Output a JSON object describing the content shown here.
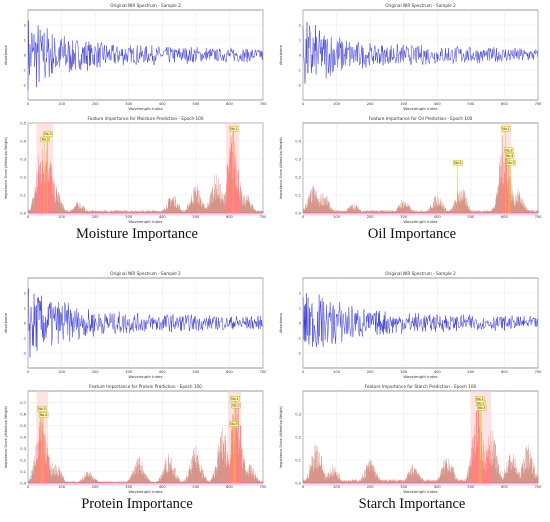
{
  "panels": [
    {
      "caption": "Moisture Importance",
      "spectrum": {
        "title": "Original NIR Spectrum - Sample 2",
        "xlabel": "Wavelength Index",
        "ylabel": "Absorbance"
      },
      "importance": {
        "title": "Feature Importance for Moisture Prediction - Epoch 100",
        "xlabel": "Wavelength Index",
        "ylabel": "Importance Score (Attention Weight)"
      }
    },
    {
      "caption": "Oil Importance",
      "spectrum": {
        "title": "Original NIR Spectrum - Sample 2",
        "xlabel": "Wavelength Index",
        "ylabel": "Absorbance"
      },
      "importance": {
        "title": "Feature Importance for Oil Prediction - Epoch 100",
        "xlabel": "Wavelength Index",
        "ylabel": "Importance Score (Attention Weight)"
      }
    },
    {
      "caption": "Protein Importance",
      "spectrum": {
        "title": "Original NIR Spectrum - Sample 2",
        "xlabel": "Wavelength Index",
        "ylabel": "Absorbance"
      },
      "importance": {
        "title": "Feature Importance for Protein Prediction - Epoch 100",
        "xlabel": "Wavelength Index",
        "ylabel": "Importance Score (Attention Weight)"
      }
    },
    {
      "caption": "Starch Importance",
      "spectrum": {
        "title": "Original NIR Spectrum - Sample 2",
        "xlabel": "Wavelength Index",
        "ylabel": "Absorbance"
      },
      "importance": {
        "title": "Feature Importance for Starch Prediction - Epoch 100",
        "xlabel": "Wavelength Index",
        "ylabel": "Importance Score (Attention Weight)"
      }
    }
  ],
  "chart_data": [
    {
      "type": "line",
      "name": "moisture-spectrum",
      "xlim": [
        0,
        700
      ],
      "ylim": [
        -3,
        3
      ],
      "xticks": [
        "0",
        "100",
        "200",
        "300",
        "400",
        "500",
        "600",
        "700"
      ],
      "yticks": [
        "2",
        "1",
        "0",
        "-1",
        "-2"
      ],
      "color": "#3b3bd6",
      "envelope": [
        [
          0,
          2.6
        ],
        [
          50,
          2.0
        ],
        [
          100,
          1.6
        ],
        [
          150,
          1.1
        ],
        [
          200,
          0.9
        ],
        [
          300,
          0.7
        ],
        [
          500,
          0.55
        ],
        [
          700,
          0.45
        ]
      ]
    },
    {
      "type": "bar",
      "name": "moisture-importance",
      "xlim": [
        0,
        700
      ],
      "ylim": [
        0,
        0.5
      ],
      "xticks": [
        "0",
        "100",
        "200",
        "300",
        "400",
        "500",
        "600",
        "700"
      ],
      "yticks": [
        "0.5",
        "0.4",
        "0.3",
        "0.2",
        "0.1",
        "0.0"
      ],
      "bar_color": "#c66a5a",
      "highlight_color": "#ff5a5a",
      "peaks": [
        [
          40,
          0.36
        ],
        [
          55,
          0.42
        ],
        [
          80,
          0.15
        ],
        [
          150,
          0.06
        ],
        [
          430,
          0.1
        ],
        [
          500,
          0.15
        ],
        [
          560,
          0.2
        ],
        [
          610,
          0.45
        ],
        [
          650,
          0.1
        ]
      ],
      "highlights": [
        [
          25,
          75
        ],
        [
          590,
          630
        ]
      ],
      "annotations": [
        {
          "x": 50,
          "y": 0.4,
          "label": "No.2"
        },
        {
          "x": 58,
          "y": 0.43,
          "label": "No.3"
        },
        {
          "x": 612,
          "y": 0.46,
          "label": "No.1"
        }
      ]
    },
    {
      "type": "line",
      "name": "oil-spectrum",
      "xlim": [
        0,
        700
      ],
      "ylim": [
        -3,
        3
      ],
      "xticks": [
        "0",
        "100",
        "200",
        "300",
        "400",
        "500",
        "600",
        "700"
      ],
      "yticks": [
        "2",
        "1",
        "0",
        "-1",
        "-2"
      ],
      "color": "#3b3bd6",
      "envelope": [
        [
          0,
          2.3
        ],
        [
          50,
          1.9
        ],
        [
          100,
          1.4
        ],
        [
          150,
          1.0
        ],
        [
          200,
          0.8
        ],
        [
          300,
          0.7
        ],
        [
          500,
          0.55
        ],
        [
          700,
          0.45
        ]
      ]
    },
    {
      "type": "bar",
      "name": "oil-importance",
      "xlim": [
        0,
        700
      ],
      "ylim": [
        0,
        0.5
      ],
      "xticks": [
        "0",
        "100",
        "200",
        "300",
        "400",
        "500",
        "600",
        "700"
      ],
      "yticks": [
        "0.4",
        "0.3",
        "0.2",
        "0.1",
        "0.0"
      ],
      "bar_color": "#c66a5a",
      "highlight_color": "#ff5a5a",
      "peaks": [
        [
          30,
          0.14
        ],
        [
          60,
          0.11
        ],
        [
          150,
          0.05
        ],
        [
          300,
          0.07
        ],
        [
          400,
          0.1
        ],
        [
          470,
          0.14
        ],
        [
          600,
          0.42
        ],
        [
          640,
          0.12
        ]
      ],
      "highlights": [
        [
          590,
          620
        ]
      ],
      "annotations": [
        {
          "x": 460,
          "y": 0.27,
          "label": "No.5"
        },
        {
          "x": 603,
          "y": 0.46,
          "label": "No.1"
        },
        {
          "x": 612,
          "y": 0.34,
          "label": "No.2"
        },
        {
          "x": 614,
          "y": 0.31,
          "label": "No.4"
        },
        {
          "x": 618,
          "y": 0.27,
          "label": "No.3"
        }
      ]
    },
    {
      "type": "line",
      "name": "protein-spectrum",
      "xlim": [
        0,
        700
      ],
      "ylim": [
        -3,
        3
      ],
      "xticks": [
        "0",
        "100",
        "200",
        "300",
        "400",
        "500",
        "600",
        "700"
      ],
      "yticks": [
        "2",
        "1",
        "0",
        "-1",
        "-2"
      ],
      "color": "#3b3bd6",
      "envelope": [
        [
          0,
          2.5
        ],
        [
          50,
          2.0
        ],
        [
          100,
          1.5
        ],
        [
          150,
          1.1
        ],
        [
          200,
          0.9
        ],
        [
          300,
          0.7
        ],
        [
          500,
          0.55
        ],
        [
          700,
          0.45
        ]
      ]
    },
    {
      "type": "bar",
      "name": "protein-importance",
      "xlim": [
        0,
        700
      ],
      "ylim": [
        0,
        0.8
      ],
      "xticks": [
        "0",
        "100",
        "200",
        "300",
        "400",
        "500",
        "600",
        "700"
      ],
      "yticks": [
        "0.7",
        "0.6",
        "0.5",
        "0.4",
        "0.3",
        "0.2",
        "0.1",
        "0.0"
      ],
      "bar_color": "#c66a5a",
      "highlight_color": "#ff5a5a",
      "peaks": [
        [
          40,
          0.62
        ],
        [
          80,
          0.18
        ],
        [
          180,
          0.1
        ],
        [
          330,
          0.22
        ],
        [
          420,
          0.25
        ],
        [
          500,
          0.3
        ],
        [
          580,
          0.45
        ],
        [
          620,
          0.7
        ],
        [
          660,
          0.15
        ]
      ],
      "highlights": [
        [
          25,
          60
        ],
        [
          595,
          635
        ]
      ],
      "annotations": [
        {
          "x": 40,
          "y": 0.63,
          "label": "No.3"
        },
        {
          "x": 45,
          "y": 0.58,
          "label": "No.4"
        },
        {
          "x": 615,
          "y": 0.72,
          "label": "No.1"
        },
        {
          "x": 618,
          "y": 0.66,
          "label": "No.2"
        },
        {
          "x": 612,
          "y": 0.5,
          "label": "No.5"
        }
      ]
    },
    {
      "type": "line",
      "name": "starch-spectrum",
      "xlim": [
        0,
        700
      ],
      "ylim": [
        -3,
        3
      ],
      "xticks": [
        "0",
        "100",
        "200",
        "300",
        "400",
        "500",
        "600",
        "700"
      ],
      "yticks": [
        "2",
        "1",
        "0",
        "-1",
        "-2"
      ],
      "color": "#3b3bd6",
      "envelope": [
        [
          0,
          2.4
        ],
        [
          50,
          2.0
        ],
        [
          100,
          1.5
        ],
        [
          150,
          1.1
        ],
        [
          200,
          0.9
        ],
        [
          300,
          0.7
        ],
        [
          500,
          0.55
        ],
        [
          700,
          0.45
        ]
      ]
    },
    {
      "type": "bar",
      "name": "starch-importance",
      "xlim": [
        0,
        700
      ],
      "ylim": [
        0,
        0.4
      ],
      "xticks": [
        "0",
        "100",
        "200",
        "300",
        "400",
        "500",
        "600",
        "700"
      ],
      "yticks": [
        "0.3",
        "0.2",
        "0.1",
        "0.0"
      ],
      "bar_color": "#c66a5a",
      "highlight_color": "#ff5a5a",
      "peaks": [
        [
          40,
          0.17
        ],
        [
          90,
          0.07
        ],
        [
          200,
          0.1
        ],
        [
          330,
          0.08
        ],
        [
          430,
          0.12
        ],
        [
          520,
          0.33
        ],
        [
          560,
          0.22
        ],
        [
          620,
          0.13
        ],
        [
          670,
          0.16
        ]
      ],
      "highlights": [
        [
          500,
          560
        ]
      ],
      "annotations": [
        {
          "x": 525,
          "y": 0.36,
          "label": "No.1"
        },
        {
          "x": 528,
          "y": 0.34,
          "label": "No.2"
        },
        {
          "x": 531,
          "y": 0.32,
          "label": "No.3"
        }
      ]
    }
  ]
}
